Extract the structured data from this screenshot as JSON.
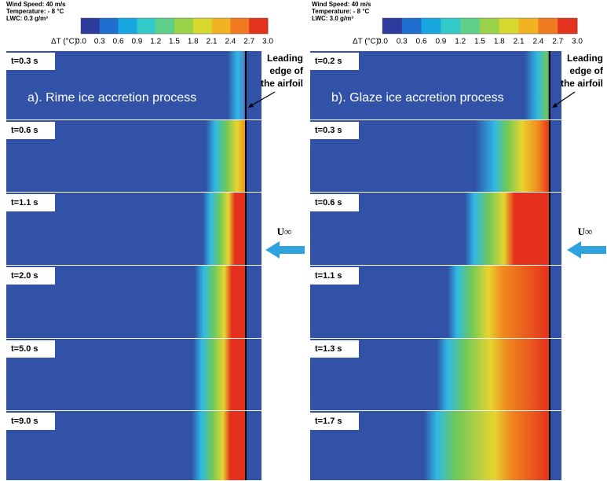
{
  "panels": [
    {
      "conditions": [
        "Wind Speed: 40 m/s",
        "Temperature: - 8 °C",
        "LWC: 0.3 g/m³"
      ],
      "colorbar": {
        "label": "ΔT (°C):",
        "ticks": [
          "0.0",
          "0.3",
          "0.6",
          "0.9",
          "1.2",
          "1.5",
          "1.8",
          "2.1",
          "2.4",
          "2.7",
          "3.0"
        ]
      },
      "title": "a). Rime ice accretion process",
      "annotation": [
        "Leading",
        "edge of",
        "the airfoil"
      ],
      "flow_label": "U∞",
      "frames": [
        "t=0.3 s",
        "t=0.6 s",
        "t=1.1 s",
        "t=2.0 s",
        "t=5.0 s",
        "t=9.0 s"
      ]
    },
    {
      "conditions": [
        "Wind Speed: 40 m/s",
        "Temperature: - 8 °C",
        "LWC: 3.0 g/m³"
      ],
      "colorbar": {
        "label": "ΔT (°C):",
        "ticks": [
          "0.0",
          "0.3",
          "0.6",
          "0.9",
          "1.2",
          "1.5",
          "1.8",
          "2.1",
          "2.4",
          "2.7",
          "3.0"
        ]
      },
      "title": "b). Glaze ice accretion process",
      "annotation": [
        "Leading",
        "edge of",
        "the airfoil"
      ],
      "flow_label": "U∞",
      "frames": [
        "t=0.2 s",
        "t=0.3 s",
        "t=0.6 s",
        "t=1.1 s",
        "t=1.3 s",
        "t=1.7 s"
      ]
    }
  ]
}
